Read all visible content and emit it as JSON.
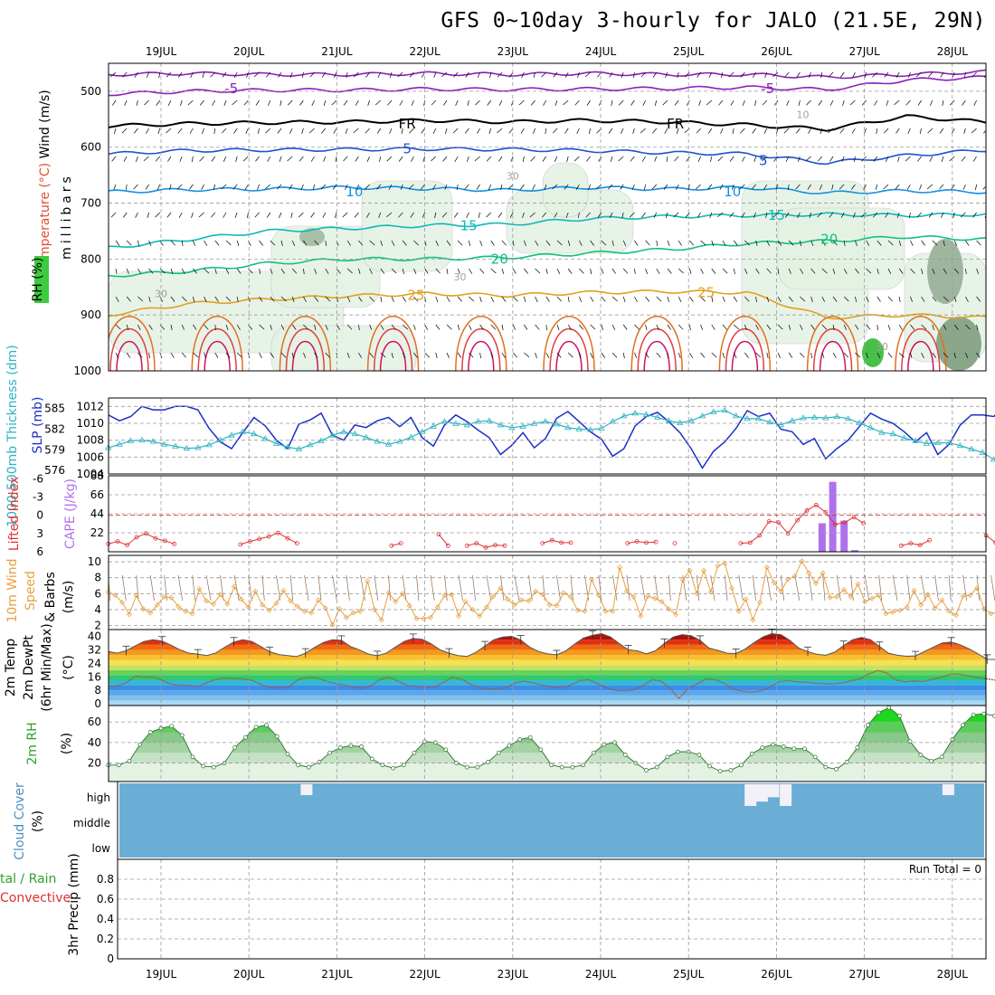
{
  "title": "GFS 0~10day 3-hourly for JALO (21.5E, 29N)",
  "dates": [
    "19JUL",
    "20JUL",
    "21JUL",
    "22JUL",
    "23JUL",
    "24JUL",
    "25JUL",
    "26JUL",
    "27JUL",
    "28JUL"
  ],
  "colors": {
    "grid": "#9a9a9a",
    "slp": "#1a2fc8",
    "thick": "#2ab4c4",
    "li": "#e03030",
    "cape": "#b070ee",
    "wind": "#e8a040",
    "rh": "#39b54a",
    "cloud": "#6aaed6"
  },
  "chart_data": [
    {
      "type": "contour",
      "panel": "upper-air",
      "ylabel": "millibars",
      "side_labels": [
        "RH (%)",
        "Temperature (°C)",
        "Wind (m/s)"
      ],
      "yticks": [
        500,
        600,
        700,
        800,
        900,
        1000
      ],
      "ylim": [
        1000,
        450
      ],
      "isotherm_labels": [
        {
          "label": "-5",
          "pressure": 495,
          "day": 0.8,
          "color": "#8a20b8"
        },
        {
          "label": "-5",
          "pressure": 495,
          "day": 6.9,
          "color": "#8a20b8"
        },
        {
          "label": "FR",
          "pressure": 558,
          "day": 2.8,
          "color": "#000000"
        },
        {
          "label": "FR",
          "pressure": 558,
          "day": 5.85,
          "color": "#000000"
        },
        {
          "label": "5",
          "pressure": 603,
          "day": 2.8,
          "color": "#1f4fd0"
        },
        {
          "label": "5",
          "pressure": 624,
          "day": 6.85,
          "color": "#1f4fd0"
        },
        {
          "label": "10",
          "pressure": 680,
          "day": 2.2,
          "color": "#1090e0"
        },
        {
          "label": "10",
          "pressure": 680,
          "day": 6.5,
          "color": "#1090e0"
        },
        {
          "label": "15",
          "pressure": 740,
          "day": 3.5,
          "color": "#10b8b8"
        },
        {
          "label": "15",
          "pressure": 722,
          "day": 7.0,
          "color": "#10b8b8"
        },
        {
          "label": "20",
          "pressure": 800,
          "day": 3.85,
          "color": "#10c080"
        },
        {
          "label": "20",
          "pressure": 765,
          "day": 7.6,
          "color": "#10c080"
        },
        {
          "label": "25",
          "pressure": 865,
          "day": 2.9,
          "color": "#e0a020"
        },
        {
          "label": "25",
          "pressure": 860,
          "day": 6.2,
          "color": "#e0a020"
        },
        {
          "label": "30",
          "pressure": 860,
          "day": 0.0,
          "color": "#a0a0a0"
        },
        {
          "label": "10",
          "pressure": 540,
          "day": 7.3,
          "color": "#a0a0a0"
        },
        {
          "label": "30",
          "pressure": 650,
          "day": 4.0,
          "color": "#a0a0a0"
        },
        {
          "label": "30",
          "pressure": 830,
          "day": 3.4,
          "color": "#a0a0a0"
        },
        {
          "label": "30",
          "pressure": 955,
          "day": 8.2,
          "color": "#a0a0a0"
        }
      ]
    },
    {
      "type": "line",
      "panel": "slp-thickness",
      "ylabel_left": "1000-500mb Thickness (dm)",
      "ylabel_right": "SLP (mb)",
      "yticks_left": [
        576,
        579,
        582,
        585
      ],
      "yticks_right": [
        1004,
        1006,
        1008,
        1010,
        1012
      ],
      "ylim_right": [
        1004,
        1013
      ],
      "ylim_left": [
        575.5,
        586.5
      ],
      "series": [
        {
          "name": "SLP (mb)",
          "axis": "right",
          "values": [
            1011.0,
            1010.3,
            1010.8,
            1012.0,
            1011.6,
            1011.6,
            1012.0,
            1012.0,
            1011.6,
            1009.4,
            1007.8,
            1007.0,
            1008.9,
            1010.7,
            1009.7,
            1008.0,
            1007.0,
            1009.9,
            1010.4,
            1011.2,
            1008.6,
            1008.0,
            1009.8,
            1009.5,
            1010.3,
            1010.7,
            1009.6,
            1010.7,
            1008.3,
            1007.3,
            1009.8,
            1011.0,
            1010.2,
            1009.2,
            1008.3,
            1006.3,
            1007.4,
            1008.9,
            1007.1,
            1008.2,
            1010.6,
            1011.4,
            1010.2,
            1009.0,
            1008.1,
            1006.1,
            1007.0,
            1009.7,
            1010.8,
            1011.3,
            1010.2,
            1008.9,
            1007.0,
            1004.7,
            1006.7,
            1007.8,
            1009.4,
            1011.5,
            1010.8,
            1011.2,
            1009.3,
            1009.0,
            1007.5,
            1008.2,
            1005.8,
            1007.0,
            1008.0,
            1009.6,
            1011.2,
            1010.5,
            1010.0,
            1009.0,
            1007.8,
            1008.9,
            1006.3,
            1007.5,
            1009.8,
            1011.0,
            1011.0,
            1010.8,
            1012.2
          ]
        },
        {
          "name": "1000-500mb Thickness (dm)",
          "axis": "left",
          "values": [
            579.3,
            579.8,
            580.3,
            580.4,
            580.2,
            579.8,
            579.5,
            579.2,
            579.3,
            579.7,
            580.4,
            581.1,
            581.6,
            581.3,
            580.6,
            579.9,
            579.4,
            579.1,
            579.7,
            580.3,
            581.1,
            581.6,
            581.3,
            580.8,
            580.2,
            579.8,
            580.2,
            580.8,
            581.6,
            582.4,
            583.1,
            582.8,
            582.6,
            583.1,
            583.2,
            582.6,
            582.2,
            582.4,
            582.8,
            583.1,
            582.7,
            582.2,
            582.0,
            581.9,
            582.1,
            583.1,
            583.9,
            584.3,
            584.1,
            583.7,
            583.2,
            582.9,
            583.2,
            583.9,
            584.5,
            584.7,
            583.9,
            583.5,
            583.5,
            583.0,
            582.6,
            583.2,
            583.6,
            583.7,
            583.6,
            583.8,
            583.5,
            582.9,
            582.2,
            581.5,
            581.3,
            580.7,
            580.3,
            579.9,
            580.0,
            580.0,
            579.6,
            579.1,
            578.6,
            577.6,
            576.6
          ]
        }
      ]
    },
    {
      "type": "line+bar",
      "panel": "lifted-cape",
      "ylabel_left": "Lifted Index",
      "ylabel_right": "CAPE (J/kg)",
      "yticks_left": [
        -6,
        -3,
        0,
        3,
        6
      ],
      "yticks_right": [
        22,
        44,
        66,
        88
      ],
      "ylim_left": [
        6,
        -6.5
      ],
      "ylim_right": [
        0,
        88
      ],
      "lifted_index": [
        4.7,
        4.3,
        4.9,
        3.6,
        3.0,
        3.8,
        4.2,
        4.7,
        null,
        null,
        null,
        null,
        null,
        null,
        4.8,
        4.3,
        3.9,
        3.5,
        2.9,
        3.8,
        4.6,
        null,
        null,
        null,
        null,
        null,
        null,
        null,
        null,
        null,
        5.0,
        4.6,
        null,
        null,
        null,
        3.1,
        5.0,
        null,
        5.0,
        4.6,
        5.3,
        4.9,
        5.0,
        null,
        null,
        null,
        4.6,
        4.1,
        4.5,
        4.5,
        null,
        null,
        null,
        null,
        null,
        4.6,
        4.3,
        4.5,
        4.4,
        null,
        4.6,
        null,
        null,
        null,
        null,
        null,
        null,
        4.6,
        4.5,
        3.3,
        1.0,
        1.2,
        3.0,
        0.8,
        -0.8,
        -1.7,
        -0.5,
        1.5,
        1.2,
        0.3,
        1.3,
        null,
        null,
        null,
        5.0,
        4.6,
        4.9,
        4.1,
        null,
        null,
        null,
        null,
        null,
        3.3,
        4.5,
        5.2
      ],
      "cape_bars": [
        {
          "day": 7.52,
          "value": 33
        },
        {
          "day": 7.64,
          "value": 81
        },
        {
          "day": 7.77,
          "value": 36
        },
        {
          "day": 7.89,
          "value": 2
        }
      ]
    },
    {
      "type": "line",
      "panel": "wind-10m",
      "ylabel": "10m Wind Speed & Barbs (m/s)",
      "yticks": [
        2,
        4,
        6,
        8,
        10
      ],
      "ylim": [
        1.5,
        10.8
      ],
      "values": [
        6.2,
        5.8,
        4.9,
        3.4,
        5.8,
        4.1,
        3.6,
        4.6,
        5.6,
        5.5,
        4.4,
        3.8,
        3.5,
        6.6,
        5.1,
        4.7,
        5.9,
        4.7,
        6.9,
        5.3,
        4.3,
        6.3,
        4.6,
        3.9,
        4.8,
        6.4,
        5.1,
        4.4,
        3.8,
        3.6,
        5.2,
        4.2,
        2.1,
        4.1,
        3.0,
        3.6,
        3.8,
        7.6,
        4.0,
        2.7,
        6.1,
        5.0,
        6.0,
        4.5,
        2.9,
        2.9,
        3.0,
        4.3,
        5.8,
        5.9,
        3.2,
        5.0,
        4.0,
        3.2,
        4.3,
        5.7,
        6.7,
        5.3,
        4.6,
        5.2,
        5.1,
        6.3,
        5.9,
        4.6,
        4.5,
        6.1,
        5.6,
        3.9,
        3.8,
        7.8,
        5.8,
        3.8,
        3.8,
        9.3,
        6.3,
        5.6,
        3.2,
        5.7,
        5.4,
        5.0,
        4.1,
        3.4,
        7.7,
        8.9,
        6.0,
        8.9,
        6.2,
        9.5,
        9.8,
        6.7,
        3.8,
        5.3,
        2.7,
        4.9,
        9.3,
        7.4,
        6.3,
        7.8,
        8.2,
        10.1,
        8.6,
        7.3,
        8.6,
        5.5,
        5.6,
        6.5,
        5.6,
        7.2,
        5.0,
        5.4,
        5.8,
        3.5,
        3.7,
        3.9,
        4.3,
        6.4,
        4.6,
        5.9,
        4.2,
        5.2,
        3.8,
        3.3,
        5.7,
        5.8,
        6.7,
        4.1,
        3.5,
        3.7,
        4.4
      ]
    },
    {
      "type": "area",
      "panel": "temp-dewpt",
      "ylabel": "2m Temp 2m DewPt (6hr Min/Max) (°C)",
      "yticks": [
        0,
        8,
        16,
        24,
        32,
        40
      ],
      "ylim": [
        -1,
        44
      ],
      "temperature": [
        31.0,
        30.0,
        31.5,
        34.3,
        37.0,
        38.0,
        37.2,
        34.8,
        32.0,
        30.0,
        29.5,
        28.6,
        30.2,
        33.6,
        36.6,
        38.0,
        37.0,
        34.0,
        31.0,
        29.2,
        28.6,
        28.0,
        30.0,
        33.4,
        36.4,
        38.0,
        37.6,
        34.0,
        32.0,
        29.5,
        28.5,
        30.0,
        33.5,
        37.0,
        38.7,
        38.2,
        35.6,
        32.0,
        30.0,
        28.6,
        28.1,
        30.5,
        34.3,
        38.0,
        39.6,
        40.0,
        37.8,
        33.6,
        31.0,
        29.6,
        29.0,
        31.3,
        35.4,
        39.0,
        40.6,
        41.6,
        39.6,
        35.6,
        32.0,
        31.4,
        29.6,
        31.4,
        35.8,
        39.6,
        41.0,
        40.4,
        37.6,
        33.0,
        31.6,
        30.0,
        29.8,
        32.4,
        36.2,
        39.6,
        41.6,
        41.0,
        37.6,
        33.0,
        31.0,
        29.4,
        28.8,
        30.6,
        34.5,
        38.0,
        39.3,
        38.0,
        34.0,
        30.0,
        28.8,
        28.2,
        28.4,
        31.0,
        33.6,
        36.0,
        36.6,
        35.0,
        32.6,
        29.6,
        26.4,
        26.2,
        25.2
      ],
      "dewpoint": [
        10.4,
        10.6,
        12.5,
        16.4,
        15.8,
        16.0,
        13.8,
        11.6,
        11.0,
        10.8,
        10.3,
        12.8,
        14.6,
        15.3,
        15.0,
        14.7,
        13.8,
        11.0,
        9.7,
        9.5,
        10.2,
        14.5,
        15.6,
        15.5,
        13.5,
        12.0,
        11.2,
        9.8,
        9.3,
        10.8,
        14.3,
        15.8,
        13.4,
        10.8,
        10.4,
        9.8,
        10.0,
        12.8,
        15.7,
        14.6,
        11.6,
        9.4,
        8.8,
        8.8,
        9.7,
        12.6,
        13.4,
        12.3,
        10.8,
        10.2,
        9.5,
        11.0,
        13.6,
        14.4,
        12.0,
        9.5,
        8.0,
        7.6,
        8.3,
        10.6,
        14.2,
        13.5,
        9.2,
        3.0,
        9.0,
        11.8,
        14.8,
        14.4,
        12.2,
        8.8,
        7.4,
        7.0,
        7.6,
        9.7,
        13.0,
        13.8,
        13.0,
        12.8,
        12.2,
        12.0,
        11.8,
        12.4,
        13.6,
        14.8,
        17.8,
        19.8,
        18.2,
        14.0,
        13.0,
        13.6,
        13.2,
        14.6,
        15.8,
        17.6,
        17.6,
        16.5,
        15.5,
        14.8,
        14.0,
        13.6
      ]
    },
    {
      "type": "area",
      "panel": "rh-2m",
      "ylabel": "2m RH (%)",
      "yticks": [
        20,
        40,
        60
      ],
      "ylim": [
        2,
        76
      ],
      "values": [
        18,
        18,
        22,
        38,
        50,
        54,
        56,
        47,
        26,
        17,
        16,
        20,
        35,
        45,
        55,
        57,
        46,
        29,
        18,
        16,
        21,
        30,
        35,
        37,
        36,
        24,
        18,
        15,
        18,
        30,
        41,
        40,
        33,
        20,
        16,
        16,
        21,
        30,
        37,
        43,
        45,
        33,
        18,
        16,
        16,
        18,
        30,
        38,
        40,
        28,
        20,
        13,
        16,
        26,
        31,
        31,
        28,
        17,
        12,
        13,
        18,
        29,
        35,
        38,
        36,
        34,
        34,
        26,
        16,
        14,
        21,
        35,
        57,
        69,
        74,
        66,
        41,
        28,
        22,
        26,
        43,
        57,
        67,
        68,
        66,
        55
      ]
    },
    {
      "type": "bar",
      "panel": "cloud-cover",
      "ylabel": "Cloud Cover (%)",
      "levels": [
        "high",
        "middle",
        "low"
      ],
      "gaps": [
        {
          "day": 1.65,
          "level": "high",
          "amount": 0.5
        },
        {
          "day": 6.7,
          "level": "high",
          "amount": 1.0
        },
        {
          "day": 6.83,
          "level": "high",
          "amount": 0.8
        },
        {
          "day": 6.96,
          "level": "high",
          "amount": 0.6
        },
        {
          "day": 7.1,
          "level": "high",
          "amount": 1.0
        },
        {
          "day": 8.95,
          "level": "high",
          "amount": 0.5
        }
      ]
    },
    {
      "type": "bar",
      "panel": "precip",
      "ylabel": "3hr Precip (mm)",
      "ylabel_secondary": "tal / Rain",
      "ylabel_tertiary": "Convective",
      "yticks": [
        0,
        0.2,
        0.4,
        0.6,
        0.8
      ],
      "ylim": [
        0,
        1
      ],
      "annotation": "Run Total = 0",
      "values": []
    }
  ]
}
